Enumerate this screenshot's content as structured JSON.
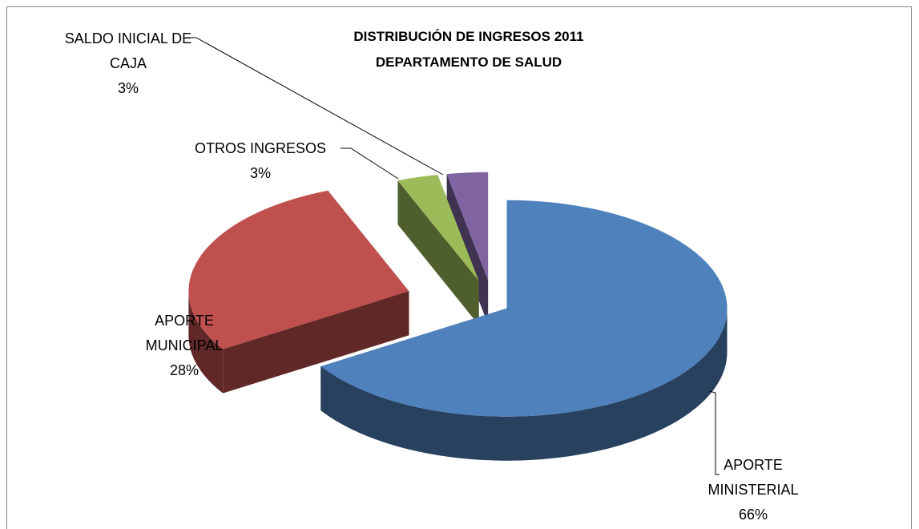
{
  "chart_data": {
    "type": "pie3d",
    "title": "DISTRIBUCIÓN DE INGRESOS 2011",
    "subtitle": "DEPARTAMENTO DE SALUD",
    "categories": [
      "APORTE MINISTERIAL",
      "APORTE MUNICIPAL",
      "OTROS INGRESOS",
      "SALDO INICIAL DE CAJA"
    ],
    "values": [
      66,
      28,
      3,
      3
    ],
    "value_labels": [
      "66%",
      "28%",
      "3%",
      "3%"
    ],
    "colors": [
      "#4f81bd",
      "#c0504d",
      "#9bbb59",
      "#8064a2"
    ]
  }
}
